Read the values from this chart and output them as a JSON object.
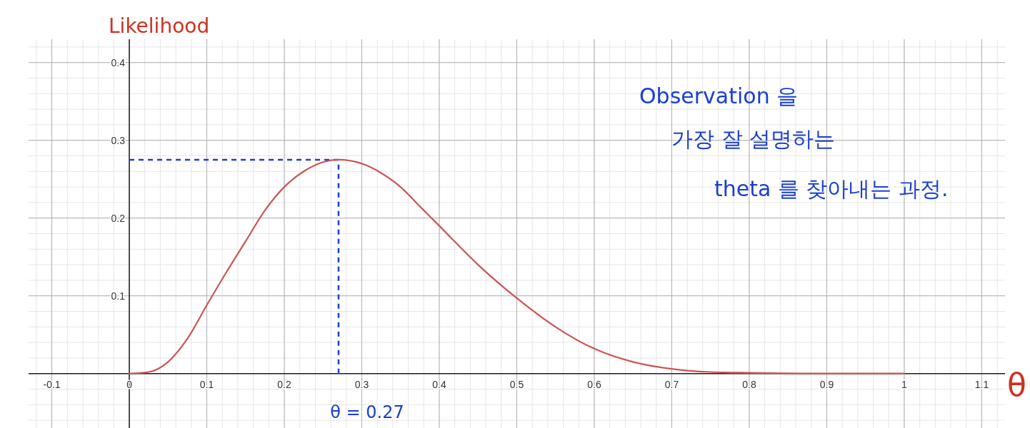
{
  "chart_data": {
    "type": "line",
    "ylabel": "Likelihood",
    "xlabel": "θ",
    "x": [
      0,
      0.025,
      0.05,
      0.075,
      0.1,
      0.125,
      0.15,
      0.175,
      0.2,
      0.225,
      0.25,
      0.27,
      0.3,
      0.325,
      0.35,
      0.375,
      0.4,
      0.45,
      0.5,
      0.55,
      0.6,
      0.65,
      0.7,
      0.75,
      0.8,
      0.9,
      1
    ],
    "series": [
      {
        "color": "#cc5555",
        "values": [
          0,
          0.002,
          0.015,
          0.045,
          0.088,
          0.13,
          0.17,
          0.21,
          0.24,
          0.26,
          0.272,
          0.275,
          0.27,
          0.258,
          0.24,
          0.215,
          0.19,
          0.14,
          0.097,
          0.06,
          0.032,
          0.015,
          0.006,
          0.002,
          0.001,
          0,
          0
        ]
      }
    ],
    "xlim": [
      -0.13,
      1.13
    ],
    "ylim": [
      -0.07,
      0.43
    ],
    "xticks": [
      -0.1,
      0,
      0.1,
      0.2,
      0.3,
      0.4,
      0.5,
      0.6,
      0.7,
      0.8,
      0.9,
      1,
      1.1
    ],
    "yticks": [
      0.1,
      0.2,
      0.3,
      0.4
    ],
    "grid": true,
    "marker": "none",
    "line_style": "solid",
    "ref_lines": [
      {
        "axis": "x",
        "value": 0.27,
        "label": "θ = 0.27",
        "color": "#1a3fd0",
        "line_style": "dashed"
      },
      {
        "axis": "y",
        "value": 0.275,
        "color": "#1a3fd0",
        "line_style": "dashed"
      }
    ],
    "annotations": [
      "Observation 을",
      "가장 잘 설명하는",
      "theta 를 찾아내는 과정."
    ]
  }
}
